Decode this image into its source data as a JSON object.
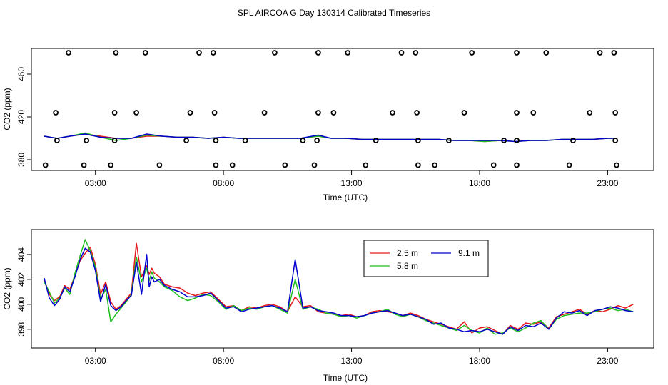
{
  "title": "SPL AIRCOA G  Day 130314  Calibrated Timeseries",
  "colors": {
    "inlet_2_5": "#e41a1c",
    "inlet_5_8": "#1fbf1f",
    "inlet_9_1": "#0000cc",
    "axis": "#000000",
    "markers": "#000000"
  },
  "chart_data": [
    {
      "id": "top",
      "type": "line+scatter",
      "xlabel": "Time (UTC)",
      "ylabel": "CO2 (ppm)",
      "xlim": [
        0.5,
        24.8
      ],
      "ylim": [
        370,
        484
      ],
      "xticks": [
        3,
        8,
        13,
        18,
        23
      ],
      "xtick_labels": [
        "03:00",
        "08:00",
        "13:00",
        "18:00",
        "23:00"
      ],
      "yticks": [
        380,
        420,
        460
      ],
      "ytick_labels": [
        "380",
        "420",
        "460"
      ],
      "reference_points": {
        "name": "calibration/reference gas values (circles)",
        "points": [
          [
            1.95,
            480
          ],
          [
            3.8,
            480
          ],
          [
            4.95,
            480
          ],
          [
            7.05,
            480
          ],
          [
            7.6,
            480
          ],
          [
            10.0,
            480
          ],
          [
            11.7,
            480
          ],
          [
            12.85,
            480
          ],
          [
            14.95,
            480
          ],
          [
            15.5,
            480
          ],
          [
            17.7,
            480
          ],
          [
            19.45,
            480
          ],
          [
            20.6,
            480
          ],
          [
            22.7,
            480
          ],
          [
            23.25,
            480
          ],
          [
            1.45,
            424
          ],
          [
            3.75,
            424
          ],
          [
            4.6,
            424
          ],
          [
            6.7,
            424
          ],
          [
            7.65,
            424
          ],
          [
            9.6,
            424
          ],
          [
            11.7,
            424
          ],
          [
            12.3,
            424
          ],
          [
            14.6,
            424
          ],
          [
            15.55,
            424
          ],
          [
            17.4,
            424
          ],
          [
            19.45,
            424
          ],
          [
            20.1,
            424
          ],
          [
            22.3,
            424
          ],
          [
            23.3,
            424
          ],
          [
            1.5,
            398
          ],
          [
            2.65,
            398
          ],
          [
            3.75,
            398
          ],
          [
            6.55,
            398
          ],
          [
            7.7,
            398
          ],
          [
            8.85,
            398
          ],
          [
            11.1,
            398
          ],
          [
            11.65,
            398
          ],
          [
            13.95,
            398
          ],
          [
            15.6,
            398
          ],
          [
            16.8,
            398
          ],
          [
            18.95,
            398
          ],
          [
            19.45,
            398
          ],
          [
            21.65,
            398
          ],
          [
            23.3,
            398
          ],
          [
            1.05,
            375
          ],
          [
            2.55,
            375
          ],
          [
            3.6,
            375
          ],
          [
            5.5,
            375
          ],
          [
            7.7,
            375
          ],
          [
            8.35,
            375
          ],
          [
            10.4,
            375
          ],
          [
            11.55,
            375
          ],
          [
            13.55,
            375
          ],
          [
            15.6,
            375
          ],
          [
            16.25,
            375
          ],
          [
            18.55,
            375
          ],
          [
            19.45,
            375
          ],
          [
            21.5,
            375
          ],
          [
            23.35,
            375
          ]
        ]
      },
      "series": [
        {
          "name": "2.5 m",
          "color": "#e41a1c",
          "x": [
            1.0,
            1.5,
            2.0,
            2.6,
            3.2,
            3.8,
            4.4,
            5.0,
            5.6,
            6.2,
            6.8,
            7.4,
            8.0,
            8.6,
            9.2,
            9.8,
            10.4,
            11.0,
            11.7,
            12.2,
            12.8,
            13.4,
            14.0,
            14.6,
            15.2,
            15.8,
            16.4,
            17.0,
            17.6,
            18.2,
            18.8,
            19.4,
            20.0,
            20.6,
            21.2,
            21.8,
            22.4,
            23.0,
            23.3
          ],
          "values": [
            402,
            400,
            402,
            404,
            402,
            400,
            400,
            402,
            402,
            401,
            401,
            400,
            401,
            400,
            400,
            400,
            400,
            400,
            402,
            400,
            400,
            399,
            399,
            399,
            399,
            399,
            399,
            398,
            398,
            397,
            398,
            397,
            398,
            398,
            399,
            399,
            399,
            400,
            400
          ]
        },
        {
          "name": "5.8 m",
          "color": "#1fbf1f",
          "x": [
            1.0,
            1.5,
            2.0,
            2.6,
            3.2,
            3.8,
            4.4,
            5.0,
            5.6,
            6.2,
            6.8,
            7.4,
            8.0,
            8.6,
            9.2,
            9.8,
            10.4,
            11.0,
            11.7,
            12.2,
            12.8,
            13.4,
            14.0,
            14.6,
            15.2,
            15.8,
            16.4,
            17.0,
            17.6,
            18.2,
            18.8,
            19.4,
            20.0,
            20.6,
            21.2,
            21.8,
            22.4,
            23.0,
            23.3
          ],
          "values": [
            402,
            400,
            402,
            405,
            401,
            398,
            400,
            403,
            402,
            401,
            401,
            400,
            401,
            400,
            400,
            400,
            400,
            400,
            402,
            400,
            400,
            399,
            399,
            399,
            399,
            399,
            399,
            398,
            398,
            397,
            398,
            397,
            398,
            398,
            399,
            399,
            399,
            400,
            400
          ]
        },
        {
          "name": "9.1 m",
          "color": "#0000cc",
          "x": [
            1.0,
            1.5,
            2.0,
            2.6,
            3.2,
            3.8,
            4.4,
            5.0,
            5.6,
            6.2,
            6.8,
            7.4,
            8.0,
            8.6,
            9.2,
            9.8,
            10.4,
            11.0,
            11.7,
            12.2,
            12.8,
            13.4,
            14.0,
            14.6,
            15.2,
            15.8,
            16.4,
            17.0,
            17.6,
            18.2,
            18.8,
            19.4,
            20.0,
            20.6,
            21.2,
            21.8,
            22.4,
            23.0,
            23.3
          ],
          "values": [
            402,
            400,
            402,
            404,
            401,
            400,
            400,
            404,
            402,
            401,
            401,
            400,
            401,
            400,
            400,
            400,
            400,
            400,
            403,
            400,
            400,
            399,
            399,
            399,
            399,
            399,
            399,
            398,
            398,
            398,
            398,
            397,
            398,
            398,
            399,
            399,
            399,
            400,
            400
          ]
        }
      ]
    },
    {
      "id": "bottom",
      "type": "line",
      "xlabel": "Time (UTC)",
      "ylabel": "CO2 (ppm)",
      "xlim": [
        0.5,
        24.8
      ],
      "ylim": [
        396.5,
        406
      ],
      "xticks": [
        3,
        8,
        13,
        18,
        23
      ],
      "xtick_labels": [
        "03:00",
        "08:00",
        "13:00",
        "18:00",
        "23:00"
      ],
      "yticks": [
        398,
        400,
        402,
        404
      ],
      "ytick_labels": [
        "398",
        "400",
        "402",
        "404"
      ],
      "legend": {
        "placement": "top-center",
        "entries": [
          "2.5 m",
          "5.8 m",
          "9.1 m"
        ]
      },
      "series": [
        {
          "name": "2.5 m",
          "color": "#e41a1c",
          "x": [
            1.0,
            1.2,
            1.4,
            1.6,
            1.8,
            2.0,
            2.2,
            2.4,
            2.6,
            2.8,
            3.0,
            3.2,
            3.4,
            3.6,
            3.8,
            4.0,
            4.2,
            4.4,
            4.6,
            4.8,
            5.0,
            5.1,
            5.2,
            5.3,
            5.5,
            5.7,
            6.0,
            6.3,
            6.6,
            6.9,
            7.2,
            7.5,
            7.8,
            8.1,
            8.4,
            8.7,
            9.0,
            9.3,
            9.6,
            9.9,
            10.2,
            10.5,
            10.8,
            11.1,
            11.4,
            11.7,
            12.0,
            12.3,
            12.6,
            12.9,
            13.2,
            13.5,
            13.8,
            14.1,
            14.4,
            14.7,
            15.0,
            15.3,
            15.6,
            15.9,
            16.2,
            16.5,
            16.8,
            17.1,
            17.4,
            17.7,
            18.0,
            18.3,
            18.6,
            18.9,
            19.2,
            19.5,
            19.8,
            20.1,
            20.4,
            20.7,
            21.0,
            21.3,
            21.6,
            21.9,
            22.2,
            22.5,
            22.8,
            23.1,
            23.4,
            23.7,
            24.0
          ],
          "values": [
            402.0,
            400.8,
            400.3,
            400.6,
            401.5,
            401.2,
            402.3,
            403.5,
            404.1,
            404.6,
            403.2,
            400.8,
            401.8,
            400.2,
            399.6,
            399.9,
            400.4,
            400.9,
            404.9,
            402.2,
            403.1,
            402.4,
            402.9,
            402.5,
            402.2,
            401.6,
            401.4,
            401.3,
            400.9,
            400.7,
            400.9,
            401.0,
            400.4,
            399.8,
            399.9,
            399.5,
            399.8,
            399.7,
            399.9,
            400.0,
            399.8,
            399.4,
            400.6,
            399.8,
            399.9,
            399.4,
            399.3,
            399.2,
            399.1,
            399.2,
            399.0,
            399.1,
            399.4,
            399.5,
            399.4,
            399.3,
            399.1,
            399.3,
            399.1,
            398.8,
            398.6,
            398.4,
            398.2,
            398.0,
            398.6,
            397.7,
            398.1,
            398.2,
            397.9,
            397.6,
            398.3,
            398.0,
            398.5,
            398.4,
            398.6,
            398.1,
            399.0,
            399.2,
            399.4,
            399.6,
            399.2,
            399.5,
            399.4,
            399.6,
            399.9,
            399.7,
            400.0
          ]
        },
        {
          "name": "5.8 m",
          "color": "#1fbf1f",
          "x": [
            1.0,
            1.2,
            1.4,
            1.6,
            1.8,
            2.0,
            2.2,
            2.4,
            2.6,
            2.8,
            3.0,
            3.2,
            3.4,
            3.6,
            3.8,
            4.0,
            4.2,
            4.4,
            4.6,
            4.8,
            5.0,
            5.1,
            5.2,
            5.3,
            5.5,
            5.7,
            6.0,
            6.3,
            6.6,
            6.9,
            7.2,
            7.5,
            7.8,
            8.1,
            8.4,
            8.7,
            9.0,
            9.3,
            9.6,
            9.9,
            10.2,
            10.5,
            10.8,
            11.1,
            11.4,
            11.7,
            12.0,
            12.3,
            12.6,
            12.9,
            13.2,
            13.5,
            13.8,
            14.1,
            14.4,
            14.7,
            15.0,
            15.3,
            15.6,
            15.9,
            16.2,
            16.5,
            16.8,
            17.1,
            17.4,
            17.7,
            18.0,
            18.3,
            18.6,
            18.9,
            19.2,
            19.5,
            19.8,
            20.1,
            20.4,
            20.7,
            21.0,
            21.3,
            21.6,
            21.9,
            22.2,
            22.5,
            22.8,
            23.1,
            23.4,
            23.7,
            24.0
          ],
          "values": [
            401.8,
            401.0,
            400.1,
            400.5,
            401.3,
            400.8,
            402.5,
            403.9,
            405.2,
            404.3,
            403.0,
            400.4,
            401.2,
            398.6,
            399.2,
            399.7,
            400.2,
            400.8,
            403.8,
            401.8,
            402.9,
            401.9,
            402.6,
            402.1,
            401.8,
            401.4,
            401.1,
            400.6,
            400.3,
            400.5,
            400.8,
            400.7,
            400.2,
            399.6,
            399.9,
            399.5,
            399.7,
            399.6,
            399.8,
            399.9,
            399.6,
            399.3,
            402.0,
            399.6,
            399.8,
            399.6,
            399.3,
            399.2,
            399.0,
            399.1,
            398.9,
            399.1,
            399.3,
            399.4,
            399.6,
            399.2,
            399.0,
            399.2,
            399.0,
            398.7,
            398.5,
            398.3,
            398.1,
            397.9,
            398.3,
            397.9,
            397.7,
            398.1,
            397.6,
            397.7,
            398.1,
            397.8,
            398.1,
            398.5,
            398.7,
            398.0,
            398.8,
            399.1,
            399.2,
            399.3,
            399.3,
            399.4,
            399.6,
            399.7,
            399.5,
            399.6,
            399.4
          ]
        },
        {
          "name": "9.1 m",
          "color": "#0000cc",
          "x": [
            1.0,
            1.2,
            1.4,
            1.6,
            1.8,
            2.0,
            2.2,
            2.4,
            2.6,
            2.8,
            3.0,
            3.2,
            3.4,
            3.6,
            3.8,
            4.0,
            4.2,
            4.4,
            4.6,
            4.8,
            5.0,
            5.1,
            5.2,
            5.3,
            5.5,
            5.7,
            6.0,
            6.3,
            6.6,
            6.9,
            7.2,
            7.5,
            7.8,
            8.1,
            8.4,
            8.7,
            9.0,
            9.3,
            9.6,
            9.9,
            10.2,
            10.5,
            10.8,
            11.1,
            11.4,
            11.7,
            12.0,
            12.3,
            12.6,
            12.9,
            13.2,
            13.5,
            13.8,
            14.1,
            14.4,
            14.7,
            15.0,
            15.3,
            15.6,
            15.9,
            16.2,
            16.5,
            16.8,
            17.1,
            17.4,
            17.7,
            18.0,
            18.3,
            18.6,
            18.9,
            19.2,
            19.5,
            19.8,
            20.1,
            20.4,
            20.7,
            21.0,
            21.3,
            21.6,
            21.9,
            22.2,
            22.5,
            22.8,
            23.1,
            23.4,
            23.7,
            24.0
          ],
          "values": [
            402.1,
            400.5,
            399.9,
            400.4,
            401.4,
            401.0,
            402.2,
            403.6,
            404.5,
            404.2,
            402.7,
            400.2,
            401.6,
            399.9,
            399.5,
            399.8,
            400.3,
            400.7,
            403.4,
            400.8,
            404.0,
            401.4,
            402.2,
            401.8,
            402.0,
            401.5,
            401.2,
            401.0,
            400.6,
            400.6,
            400.7,
            400.9,
            400.3,
            399.7,
            399.8,
            399.4,
            399.6,
            399.7,
            399.8,
            399.9,
            399.7,
            399.4,
            403.6,
            399.7,
            399.8,
            399.5,
            399.4,
            399.3,
            399.1,
            399.1,
            399.0,
            399.1,
            399.3,
            399.4,
            399.5,
            399.3,
            399.1,
            399.2,
            399.0,
            398.8,
            398.4,
            398.5,
            398.1,
            398.0,
            397.8,
            397.9,
            397.8,
            398.0,
            397.8,
            397.6,
            398.2,
            397.9,
            398.3,
            398.2,
            398.5,
            398.0,
            398.9,
            399.4,
            399.3,
            399.5,
            399.1,
            399.5,
            399.6,
            399.8,
            399.7,
            399.5,
            399.4
          ]
        }
      ]
    }
  ]
}
